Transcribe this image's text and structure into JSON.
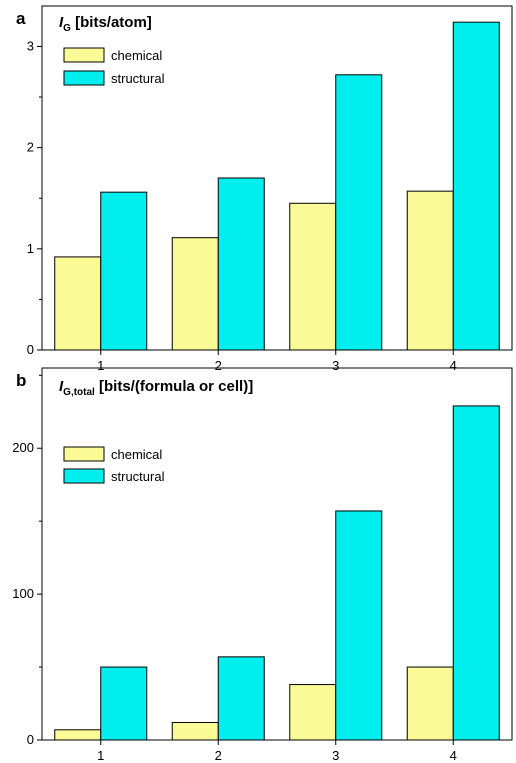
{
  "colors": {
    "chemical": "#fafa96",
    "structural": "#00eeee",
    "axis": "#000000"
  },
  "chart_data": [
    {
      "type": "bar",
      "panel_label": "a",
      "ylabel_main": "I",
      "ylabel_sub": "G",
      "ylabel_unit": " [bits/atom]",
      "categories": [
        "1",
        "2",
        "3",
        "4"
      ],
      "series": [
        {
          "name": "chemical",
          "values": [
            0.92,
            1.11,
            1.45,
            1.57
          ]
        },
        {
          "name": "structural",
          "values": [
            1.56,
            1.7,
            2.72,
            3.24
          ]
        }
      ],
      "ylim": [
        0,
        3.4
      ],
      "yticks": [
        "0",
        "1",
        "2",
        "3"
      ],
      "ytick_values": [
        0,
        1,
        2,
        3
      ],
      "legend": "top-left",
      "grid": false
    },
    {
      "type": "bar",
      "panel_label": "b",
      "ylabel_main": "I",
      "ylabel_sub": "G,total",
      "ylabel_unit": " [bits/(formula or cell)]",
      "categories": [
        "1",
        "2",
        "3",
        "4"
      ],
      "series": [
        {
          "name": "chemical",
          "values": [
            7,
            12,
            38,
            50
          ]
        },
        {
          "name": "structural",
          "values": [
            50,
            57,
            157,
            229
          ]
        }
      ],
      "ylim": [
        0,
        255
      ],
      "yticks": [
        "0",
        "100",
        "200"
      ],
      "ytick_values": [
        0,
        100,
        200
      ],
      "legend": "top-left",
      "grid": false
    }
  ]
}
